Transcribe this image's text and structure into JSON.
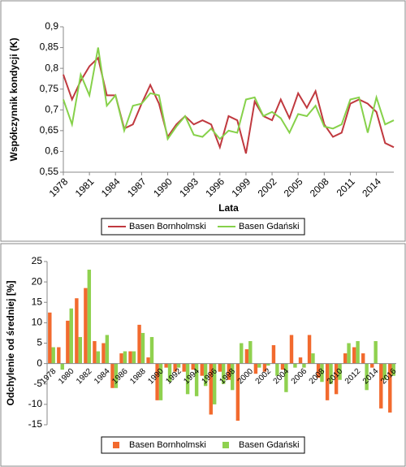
{
  "chart_data": [
    {
      "type": "line",
      "x_label": "Lata",
      "y_label": "Współczynnik kondycji (K)",
      "x": [
        1978,
        1979,
        1980,
        1981,
        1982,
        1983,
        1984,
        1985,
        1986,
        1987,
        1988,
        1989,
        1990,
        1991,
        1992,
        1993,
        1994,
        1995,
        1996,
        1997,
        1998,
        1999,
        2000,
        2001,
        2002,
        2003,
        2004,
        2005,
        2006,
        2007,
        2008,
        2009,
        2010,
        2011,
        2012,
        2013,
        2014,
        2015,
        2016
      ],
      "xlim": [
        1978,
        2016
      ],
      "xticks": [
        1978,
        1981,
        1984,
        1987,
        1990,
        1993,
        1996,
        1999,
        2002,
        2005,
        2008,
        2011,
        2014
      ],
      "ylim": [
        0.55,
        0.9
      ],
      "yticks": [
        {
          "value": 0.55,
          "label": "0,55"
        },
        {
          "value": 0.6,
          "label": "0,6"
        },
        {
          "value": 0.65,
          "label": "0,65"
        },
        {
          "value": 0.7,
          "label": "0,7"
        },
        {
          "value": 0.75,
          "label": "0,75"
        },
        {
          "value": 0.8,
          "label": "0,8"
        },
        {
          "value": 0.85,
          "label": "0,85"
        },
        {
          "value": 0.9,
          "label": "0,9"
        }
      ],
      "grid": false,
      "legend": "bottom",
      "series": [
        {
          "name": "Basen Bornholmski",
          "color": "#c0393f",
          "values": [
            0.785,
            0.725,
            0.77,
            0.805,
            0.825,
            0.735,
            0.735,
            0.655,
            0.665,
            0.715,
            0.76,
            0.715,
            0.635,
            0.665,
            0.685,
            0.665,
            0.675,
            0.665,
            0.61,
            0.685,
            0.675,
            0.595,
            0.72,
            0.685,
            0.675,
            0.725,
            0.68,
            0.74,
            0.705,
            0.745,
            0.665,
            0.635,
            0.645,
            0.715,
            0.725,
            0.715,
            0.695,
            0.62,
            0.61
          ]
        },
        {
          "name": "Basen Gdański",
          "color": "#86d14a",
          "values": [
            0.725,
            0.665,
            0.785,
            0.735,
            0.85,
            0.71,
            0.735,
            0.65,
            0.71,
            0.715,
            0.74,
            0.735,
            0.63,
            0.66,
            0.685,
            0.64,
            0.635,
            0.655,
            0.63,
            0.65,
            0.645,
            0.725,
            0.73,
            0.685,
            0.695,
            0.68,
            0.645,
            0.69,
            0.685,
            0.71,
            0.66,
            0.655,
            0.665,
            0.725,
            0.73,
            0.645,
            0.73,
            0.665,
            0.675
          ]
        }
      ]
    },
    {
      "type": "bar",
      "y_label": "Odchylenie od średniej [%]",
      "categories": [
        "1978",
        null,
        "1980",
        null,
        "1982",
        null,
        "1984",
        null,
        "1986",
        null,
        "1988",
        null,
        "1990",
        null,
        "1992",
        null,
        "1994",
        null,
        "1996",
        null,
        "1998",
        null,
        "2000",
        null,
        "2002",
        null,
        "2004",
        null,
        "2006",
        null,
        "2008",
        null,
        "2010",
        null,
        "2012",
        null,
        "2014",
        null,
        "2016"
      ],
      "ylim": [
        -15,
        25
      ],
      "yticks": [
        -15,
        -10,
        -5,
        0,
        5,
        10,
        15,
        20,
        25
      ],
      "grid": false,
      "legend": "bottom",
      "series": [
        {
          "name": "Basen Bornholmski",
          "color": "#f26a2e",
          "values": [
            12.5,
            4,
            10.5,
            16,
            18.5,
            5.5,
            5,
            -6,
            2.5,
            3,
            9.5,
            1.5,
            -9,
            -1,
            -2,
            -2,
            -1.5,
            -3,
            -12.5,
            -2,
            -4,
            -14,
            3.5,
            -2.5,
            -2,
            4.5,
            -1.5,
            7,
            1.5,
            7,
            -3.5,
            -9,
            -7.5,
            2.5,
            4,
            2.5,
            -1,
            -11,
            -12
          ]
        },
        {
          "name": "Basen Gdański",
          "color": "#8fd14f",
          "values": [
            4,
            -1.5,
            13.5,
            6.5,
            23,
            3,
            7,
            -6,
            3,
            3,
            7.5,
            6.5,
            -9,
            -4.5,
            -1,
            -7.5,
            -8,
            -5.5,
            -10,
            -5,
            -6.5,
            5,
            5.5,
            -1,
            -0.5,
            -3,
            -7,
            -1,
            -1,
            2.5,
            -4.5,
            -5,
            -4,
            5,
            5.5,
            -6.5,
            5.5,
            -4,
            -3
          ]
        }
      ]
    }
  ]
}
